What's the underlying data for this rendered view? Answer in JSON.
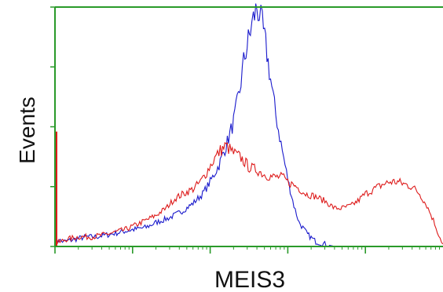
{
  "chart_data": {
    "type": "line",
    "title": "",
    "xlabel": "MEIS3",
    "ylabel": "Events",
    "x_scale": "log",
    "xlim": [
      1,
      100000
    ],
    "ylim": [
      0,
      100
    ],
    "grid": false,
    "legend": "none",
    "axes_color": "#2a9a2a",
    "series": [
      {
        "color": "#1a1acc",
        "x": [
          1,
          1.3,
          1.8,
          2.5,
          3.3,
          5,
          7,
          10,
          15,
          20,
          30,
          45,
          60,
          80,
          100,
          130,
          160,
          200,
          240,
          270,
          300,
          330,
          360,
          400,
          430,
          470,
          520,
          600,
          700,
          850,
          1000,
          1200,
          1400,
          1800,
          2300,
          3000,
          4000
        ],
        "y": [
          3,
          2,
          3,
          4,
          4,
          5,
          6,
          7,
          8,
          10,
          12,
          15,
          18,
          22,
          27,
          34,
          42,
          52,
          65,
          77,
          84,
          90,
          95,
          100,
          97,
          92,
          84,
          70,
          55,
          40,
          28,
          17,
          10,
          5,
          2,
          1,
          0
        ]
      },
      {
        "color": "#dd1a1a",
        "x": [
          1,
          1.4,
          2,
          3,
          4.5,
          6,
          8,
          11,
          15,
          20,
          27,
          35,
          45,
          60,
          75,
          90,
          110,
          135,
          160,
          200,
          250,
          320,
          400,
          500,
          650,
          850,
          1000,
          1300,
          1700,
          2200,
          3000,
          4000,
          5000,
          6500,
          8000,
          10000,
          13000,
          17000,
          21000,
          26000,
          32000,
          40000,
          50000,
          62000,
          75000,
          88000,
          100000
        ],
        "y": [
          1,
          3,
          4,
          4,
          5,
          6,
          7,
          9,
          11,
          13,
          16,
          20,
          22,
          24,
          27,
          31,
          36,
          40,
          42,
          39,
          37,
          33,
          32,
          30,
          29,
          29,
          27,
          25,
          22,
          21,
          19,
          16,
          16,
          17,
          19,
          22,
          24,
          26,
          27,
          27,
          26,
          25,
          22,
          17,
          11,
          5,
          1
        ]
      }
    ]
  }
}
